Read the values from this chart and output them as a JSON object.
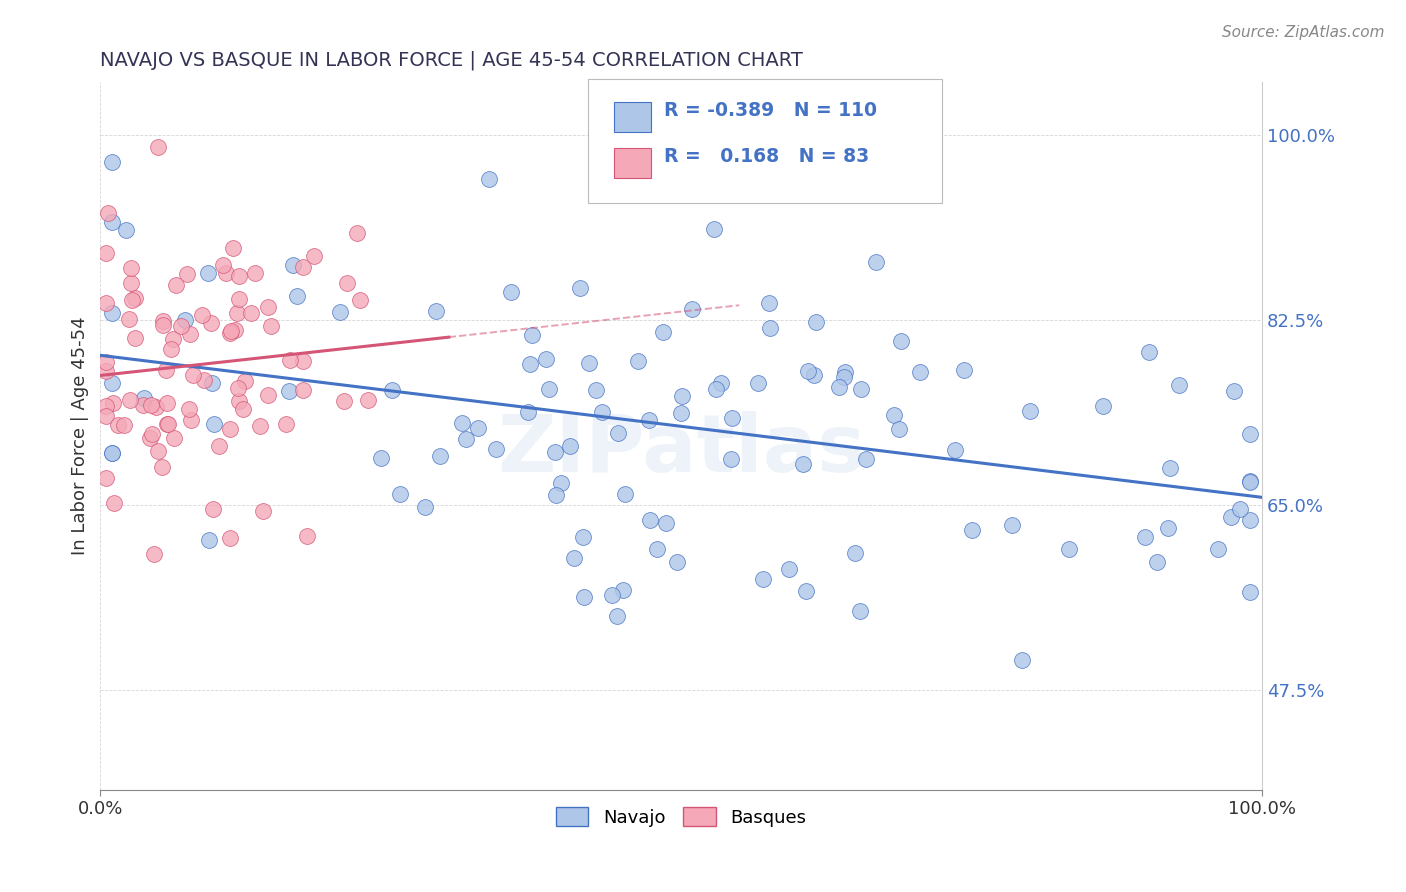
{
  "title": "NAVAJO VS BASQUE IN LABOR FORCE | AGE 45-54 CORRELATION CHART",
  "source_text": "Source: ZipAtlas.com",
  "ylabel": "In Labor Force | Age 45-54",
  "x_min": 0.0,
  "x_max": 1.0,
  "y_min": 0.38,
  "y_max": 1.05,
  "x_tick_labels": [
    "0.0%",
    "100.0%"
  ],
  "y_tick_labels": [
    "47.5%",
    "65.0%",
    "82.5%",
    "100.0%"
  ],
  "y_tick_values": [
    0.475,
    0.65,
    0.825,
    1.0
  ],
  "legend_r_navajo": "-0.389",
  "legend_n_navajo": "110",
  "legend_r_basque": "0.168",
  "legend_n_basque": "83",
  "navajo_color": "#aec6e8",
  "basque_color": "#f4a8b8",
  "navajo_line_color": "#4472c4",
  "basque_line_color": "#d45575",
  "watermark": "ZIPatlas"
}
